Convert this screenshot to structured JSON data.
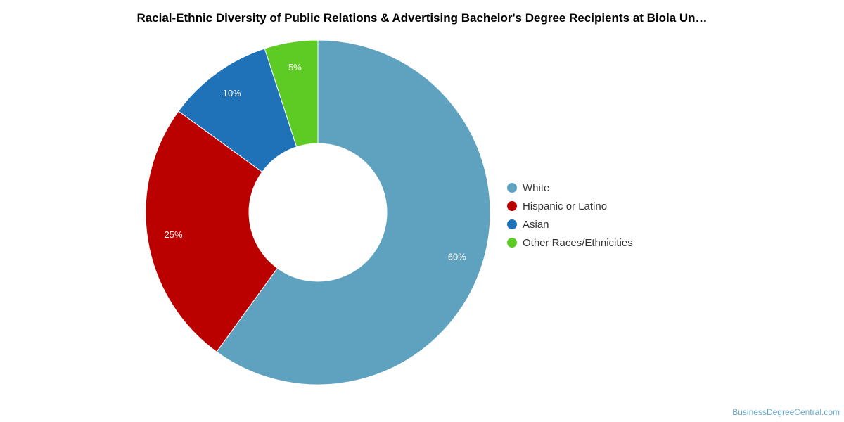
{
  "chart_data": {
    "type": "pie",
    "title": "Racial-Ethnic Diversity of Public Relations & Advertising Bachelor's Degree Recipients at Biola Un…",
    "categories": [
      "White",
      "Hispanic or Latino",
      "Asian",
      "Other Races/Ethnicities"
    ],
    "values": [
      60,
      25,
      10,
      5
    ],
    "labels": [
      "60%",
      "25%",
      "10%",
      "5%"
    ],
    "colors": [
      "#5fa2bf",
      "#bb0000",
      "#1f72b8",
      "#5ecb25"
    ],
    "donut": true,
    "legend_position": "right"
  },
  "credit": "BusinessDegreeCentral.com"
}
